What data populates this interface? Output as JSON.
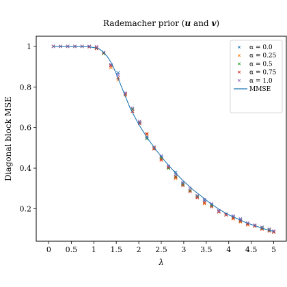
{
  "chart_data": {
    "type": "scatter",
    "title": "Rademacher prior (u and v)",
    "title_parts": [
      "Rademacher prior (",
      "u",
      " and ",
      "v",
      ")"
    ],
    "xlabel": "λ",
    "ylabel": "Diagonal block MSE",
    "xlim": [
      -0.28,
      5.28
    ],
    "ylim": [
      0.04,
      1.05
    ],
    "xticks": [
      0,
      0.5,
      1,
      1.5,
      2,
      2.5,
      3,
      3.5,
      4,
      4.5,
      5
    ],
    "xtick_labels": [
      "0",
      "0.5",
      "1",
      "1.5",
      "2",
      "2.5",
      "3",
      "3.5",
      "4",
      "4.5",
      "5"
    ],
    "yticks": [
      0.2,
      0.4,
      0.6,
      0.8,
      1.0
    ],
    "ytick_labels": [
      "0.2",
      "0.4",
      "0.6",
      "0.8",
      "1"
    ],
    "grid": false,
    "legend_position": "top-right",
    "x": [
      0.1,
      0.26,
      0.42,
      0.58,
      0.74,
      0.9,
      1.06,
      1.22,
      1.38,
      1.54,
      1.7,
      1.86,
      2.02,
      2.18,
      2.34,
      2.5,
      2.66,
      2.82,
      2.98,
      3.14,
      3.3,
      3.46,
      3.62,
      3.78,
      3.94,
      4.1,
      4.26,
      4.42,
      4.58,
      4.74,
      4.9,
      5.0
    ],
    "series": [
      {
        "name": "α = 0.0",
        "color": "#1f77b4",
        "marker": "x",
        "values": [
          1.0,
          1.0,
          1.0,
          1.0,
          1.0,
          1.0,
          0.995,
          0.97,
          0.91,
          0.87,
          0.77,
          0.69,
          0.625,
          0.555,
          0.5,
          0.455,
          0.4,
          0.38,
          0.325,
          0.29,
          0.26,
          0.24,
          0.22,
          0.19,
          0.17,
          0.16,
          0.145,
          0.125,
          0.115,
          0.105,
          0.095,
          0.09
        ]
      },
      {
        "name": "α = 0.25",
        "color": "#ff7f0e",
        "marker": "x",
        "values": [
          1.0,
          1.0,
          1.0,
          1.0,
          1.0,
          1.0,
          0.993,
          0.965,
          0.895,
          0.835,
          0.76,
          0.68,
          0.63,
          0.565,
          0.5,
          0.445,
          0.405,
          0.35,
          0.32,
          0.29,
          0.255,
          0.225,
          0.21,
          0.185,
          0.17,
          0.15,
          0.135,
          0.12,
          0.115,
          0.1,
          0.095,
          0.085
        ]
      },
      {
        "name": "α = 0.5",
        "color": "#2ca02c",
        "marker": "x",
        "values": [
          1.0,
          1.0,
          1.0,
          1.0,
          1.0,
          0.998,
          0.99,
          0.965,
          0.905,
          0.845,
          0.765,
          0.69,
          0.62,
          0.545,
          0.495,
          0.45,
          0.4,
          0.36,
          0.32,
          0.29,
          0.26,
          0.23,
          0.215,
          0.185,
          0.17,
          0.155,
          0.14,
          0.125,
          0.115,
          0.105,
          0.095,
          0.085
        ]
      },
      {
        "name": "α = 0.75",
        "color": "#d62728",
        "marker": "x",
        "values": [
          1.0,
          1.0,
          1.0,
          1.0,
          1.0,
          0.998,
          0.99,
          0.968,
          0.905,
          0.845,
          0.765,
          0.68,
          0.62,
          0.57,
          0.495,
          0.44,
          0.405,
          0.355,
          0.315,
          0.285,
          0.255,
          0.23,
          0.21,
          0.185,
          0.17,
          0.155,
          0.14,
          0.125,
          0.115,
          0.1,
          0.09,
          0.085
        ]
      },
      {
        "name": "α = 1.0",
        "color": "#9467bd",
        "marker": "x",
        "values": [
          1.0,
          1.0,
          1.0,
          1.0,
          1.0,
          1.0,
          0.998,
          0.97,
          0.91,
          0.86,
          0.77,
          0.695,
          0.63,
          0.55,
          0.505,
          0.46,
          0.41,
          0.37,
          0.33,
          0.3,
          0.265,
          0.245,
          0.225,
          0.19,
          0.175,
          0.165,
          0.15,
          0.13,
          0.12,
          0.11,
          0.1,
          0.09
        ]
      },
      {
        "name": "MMSE",
        "color": "#1f77b4",
        "line": true,
        "x": [
          0.1,
          0.9,
          1.1,
          1.2,
          1.3,
          1.4,
          1.5,
          1.6,
          1.7,
          1.8,
          2.0,
          2.2,
          2.4,
          2.6,
          2.8,
          3.0,
          3.2,
          3.4,
          3.6,
          3.8,
          4.0,
          4.2,
          4.4,
          4.6,
          4.8,
          5.0
        ],
        "values": [
          1.0,
          0.998,
          0.99,
          0.975,
          0.95,
          0.915,
          0.865,
          0.81,
          0.755,
          0.7,
          0.615,
          0.545,
          0.485,
          0.43,
          0.38,
          0.335,
          0.295,
          0.26,
          0.225,
          0.195,
          0.17,
          0.15,
          0.13,
          0.115,
          0.1,
          0.088
        ]
      }
    ]
  }
}
